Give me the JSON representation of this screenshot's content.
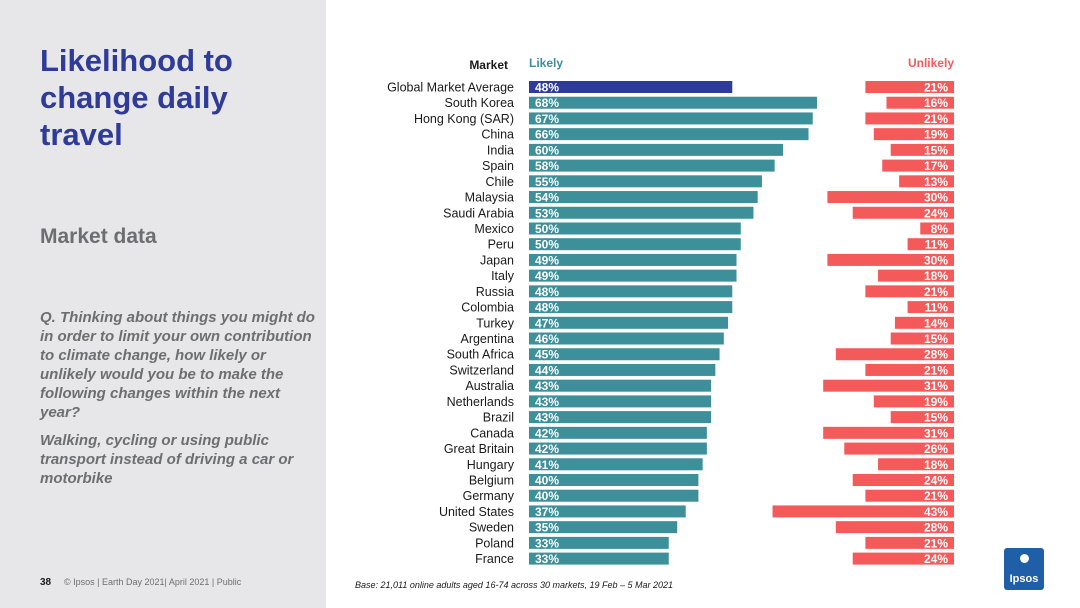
{
  "page": {
    "title": "Likelihood to change daily travel",
    "subtitle": "Market data",
    "question": "Q. Thinking about things you might do in order to limit your own contribution to climate change, how likely or unlikely would you be to make the following changes within the next year?",
    "statement": "Walking, cycling or using public transport instead of driving a car or motorbike",
    "page_number": "38",
    "footer": "© Ipsos | Earth Day 2021| April 2021 | Public",
    "base_note": "Base: 21,011 online adults aged 16-74 across 30 markets,  19 Feb – 5 Mar 2021",
    "logo_text": "Ipsos"
  },
  "colors": {
    "likely": "#3d8f9a",
    "average": "#2e3b98",
    "unlikely": "#f55a5a",
    "title": "#2e3b98"
  },
  "chart_data": {
    "type": "bar",
    "layout": "diverging-horizontal",
    "headers": {
      "market": "Market",
      "likely": "Likely",
      "unlikely": "Unlikely"
    },
    "categories": [
      "Global Market Average",
      "South Korea",
      "Hong Kong (SAR)",
      "China",
      "India",
      "Spain",
      "Chile",
      "Malaysia",
      "Saudi Arabia",
      "Mexico",
      "Peru",
      "Japan",
      "Italy",
      "Russia",
      "Colombia",
      "Turkey",
      "Argentina",
      "South Africa",
      "Switzerland",
      "Australia",
      "Netherlands",
      "Brazil",
      "Canada",
      "Great Britain",
      "Hungary",
      "Belgium",
      "Germany",
      "United States",
      "Sweden",
      "Poland",
      "France"
    ],
    "series": [
      {
        "name": "Likely",
        "values": [
          48,
          68,
          67,
          66,
          60,
          58,
          55,
          54,
          53,
          50,
          50,
          49,
          49,
          48,
          48,
          47,
          46,
          45,
          44,
          43,
          43,
          43,
          42,
          42,
          41,
          40,
          40,
          37,
          35,
          33,
          33
        ]
      },
      {
        "name": "Unlikely",
        "values": [
          21,
          16,
          21,
          19,
          15,
          17,
          13,
          30,
          24,
          8,
          11,
          30,
          18,
          21,
          11,
          14,
          15,
          28,
          21,
          31,
          19,
          15,
          31,
          26,
          18,
          24,
          21,
          43,
          28,
          21,
          24
        ]
      }
    ],
    "unit": "%",
    "highlight_index": 0
  }
}
